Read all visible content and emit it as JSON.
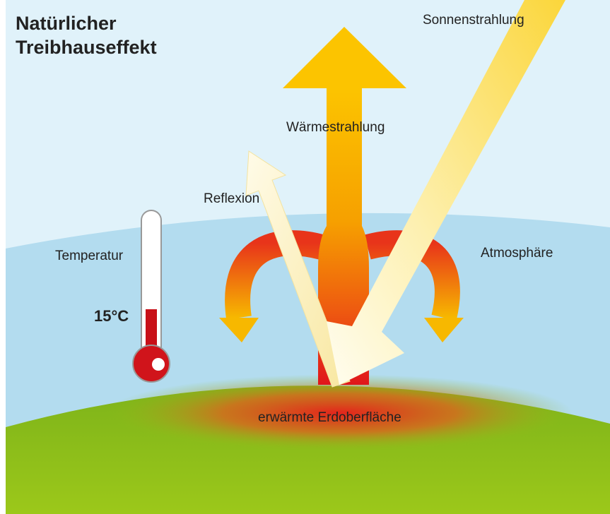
{
  "title": {
    "lines": [
      "Natürlicher",
      "Treibhauseffekt"
    ]
  },
  "labels": {
    "sun": "Sonnenstrahlung",
    "heat": "Wärmestrahlung",
    "reflection": "Reflexion",
    "atmosphere": "Atmosphäre",
    "surface": "erwärmte Erdoberfläche"
  },
  "thermometer": {
    "label": "Temperatur",
    "reading": "15°C"
  }
}
